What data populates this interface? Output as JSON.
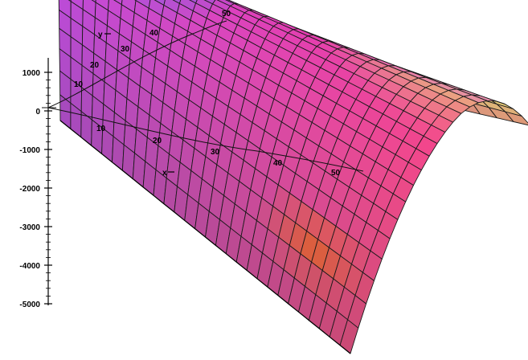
{
  "chart_data": {
    "type": "surface3d",
    "title": "",
    "z_axis": {
      "label": "",
      "range": [
        -5000,
        1000
      ],
      "ticks": [
        1000,
        0,
        -1000,
        -2000,
        -3000,
        -4000,
        -5000
      ],
      "tick_labels": [
        "1000",
        "0",
        "-1000",
        "-2000",
        "-3000",
        "-4000",
        "-5000"
      ]
    },
    "y_axis": {
      "label": "y",
      "range": [
        0,
        50
      ],
      "tick_labels": [
        "10",
        "20",
        "30",
        "40",
        "50"
      ]
    },
    "x_axis": {
      "label": "x",
      "range": [
        0,
        50
      ],
      "tick_labels": [
        "10",
        "20",
        "30",
        "40",
        "50"
      ]
    },
    "surface": {
      "shape": "parabolic ridge",
      "ridge_height": 1000,
      "edge_height": -5000,
      "grid_u": 28,
      "grid_v": 22
    },
    "grid": true,
    "legend": "none"
  }
}
